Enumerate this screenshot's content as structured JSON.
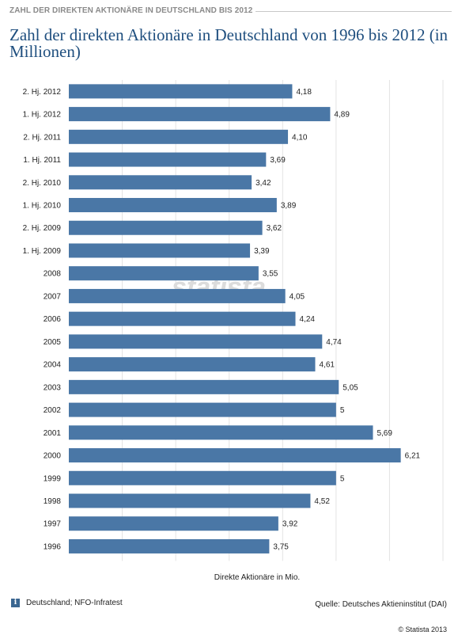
{
  "header": {
    "label": "ZAHL DER DIREKTEN AKTIONÄRE IN DEUTSCHLAND BIS 2012",
    "title": "Zahl der direkten Aktionäre in Deutschland von 1996 bis 2012 (in Millionen)"
  },
  "colors": {
    "bar": "#4a77a6",
    "title": "#1f4f7f",
    "grid": "#e3e3e3"
  },
  "chart_data": {
    "type": "bar",
    "orientation": "horizontal",
    "categories": [
      "2. Hj. 2012",
      "1. Hj. 2012",
      "2. Hj. 2011",
      "1. Hj. 2011",
      "2. Hj. 2010",
      "1. Hj. 2010",
      "2. Hj. 2009",
      "1. Hj. 2009",
      "2008",
      "2007",
      "2006",
      "2005",
      "2004",
      "2003",
      "2002",
      "2001",
      "2000",
      "1999",
      "1998",
      "1997",
      "1996"
    ],
    "values": [
      4.18,
      4.89,
      4.1,
      3.69,
      3.42,
      3.89,
      3.62,
      3.39,
      3.55,
      4.05,
      4.24,
      4.74,
      4.61,
      5.05,
      5,
      5.69,
      6.21,
      5,
      4.52,
      3.92,
      3.75
    ],
    "value_labels": [
      "4,18",
      "4,89",
      "4,10",
      "3,69",
      "3,42",
      "3,89",
      "3,62",
      "3,39",
      "3,55",
      "4,05",
      "4,24",
      "4,74",
      "4,61",
      "5,05",
      "5",
      "5,69",
      "6,21",
      "5",
      "4,52",
      "3,92",
      "3,75"
    ],
    "title": "Zahl der direkten Aktionäre in Deutschland von 1996 bis 2012 (in Millionen)",
    "xlabel": "Direkte Aktionäre in Mio.",
    "ylabel": "",
    "xlim": [
      0,
      7
    ],
    "grid": true
  },
  "watermark": "statista",
  "footer": {
    "info_icon": "info-icon",
    "info_symbol": "i",
    "left": "Deutschland; NFO-Infratest",
    "right": "Quelle: Deutsches Aktieninstitut (DAI)",
    "copyright": "© Statista 2013"
  }
}
